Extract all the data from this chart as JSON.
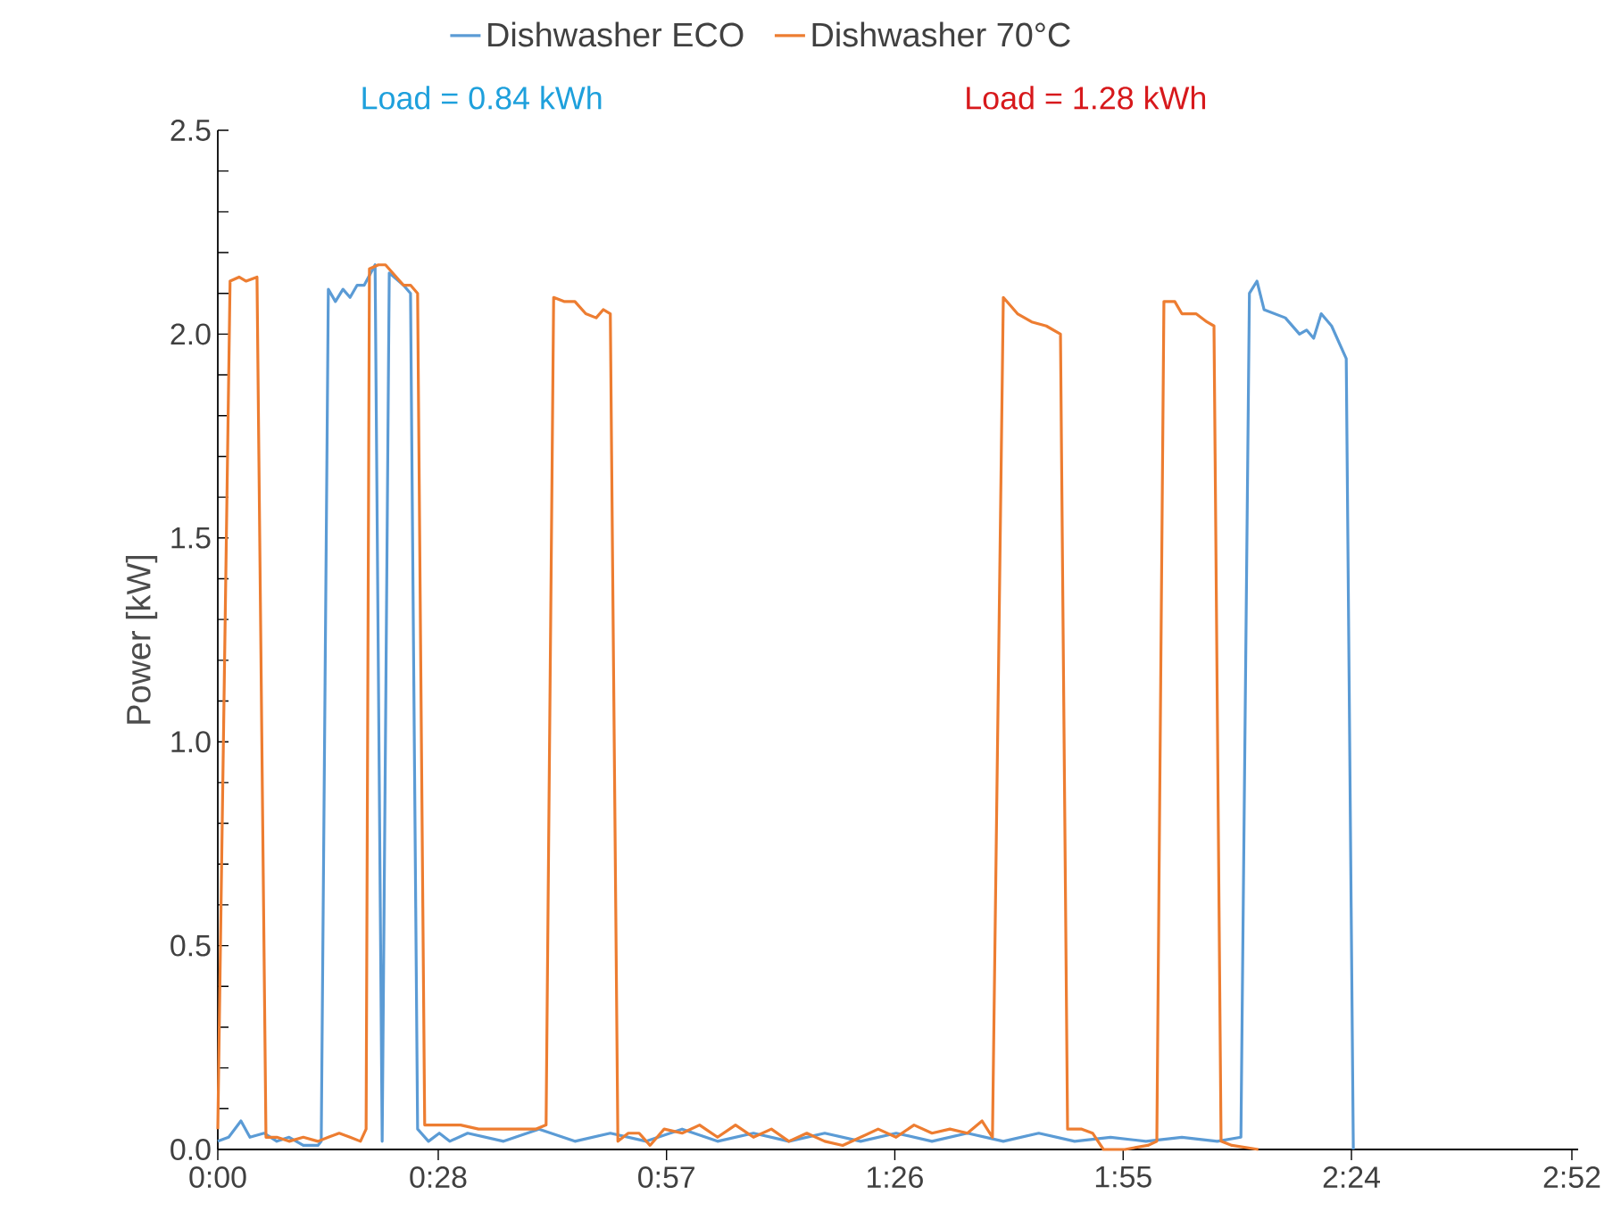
{
  "chart_data": {
    "type": "line",
    "ylabel": "Power [kW]",
    "legend": "top",
    "marker": "none",
    "line_style": "solid",
    "annotations": [
      "Load = 0.84 kWh",
      "Load = 1.28 kWh"
    ],
    "xlim": [
      0,
      2.88
    ],
    "xticks": [
      {
        "value": 0,
        "label": "0:00"
      },
      {
        "value": 0.4667,
        "label": "0:28"
      },
      {
        "value": 0.95,
        "label": "0:57"
      },
      {
        "value": 1.4333,
        "label": "1:26"
      },
      {
        "value": 1.9167,
        "label": "1:55"
      },
      {
        "value": 2.4,
        "label": "2:24"
      },
      {
        "value": 2.8667,
        "label": "2:52"
      }
    ],
    "ylim": [
      0,
      2.5
    ],
    "yticks": [
      {
        "value": 0,
        "label": "0.0"
      },
      {
        "value": 0.5,
        "label": "0.5"
      },
      {
        "value": 1,
        "label": "1.0"
      },
      {
        "value": 1.5,
        "label": "1.5"
      },
      {
        "value": 2,
        "label": "2.0"
      },
      {
        "value": 2.5,
        "label": "2.5"
      }
    ],
    "series": [
      {
        "name": "Dishwasher ECO",
        "color": "#5b9bd5",
        "x": [
          0,
          0.023,
          0.049,
          0.068,
          0.098,
          0.125,
          0.151,
          0.181,
          0.212,
          0.219,
          0.234,
          0.249,
          0.265,
          0.28,
          0.295,
          0.31,
          0.333,
          0.348,
          0.363,
          0.393,
          0.408,
          0.423,
          0.446,
          0.469,
          0.491,
          0.529,
          0.605,
          0.68,
          0.756,
          0.831,
          0.907,
          0.983,
          1.058,
          1.134,
          1.209,
          1.285,
          1.361,
          1.436,
          1.512,
          1.587,
          1.663,
          1.738,
          1.814,
          1.89,
          1.965,
          2.041,
          2.116,
          2.166,
          2.184,
          2.2,
          2.215,
          2.26,
          2.29,
          2.305,
          2.32,
          2.336,
          2.358,
          2.389,
          2.404
        ],
        "values": [
          0.02,
          0.03,
          0.07,
          0.03,
          0.04,
          0.02,
          0.03,
          0.01,
          0.01,
          0.02,
          2.11,
          2.08,
          2.11,
          2.09,
          2.12,
          2.12,
          2.17,
          0.02,
          2.15,
          2.12,
          2.1,
          0.05,
          0.02,
          0.04,
          0.02,
          0.04,
          0.02,
          0.05,
          0.02,
          0.04,
          0.02,
          0.05,
          0.02,
          0.04,
          0.02,
          0.04,
          0.02,
          0.04,
          0.02,
          0.04,
          0.02,
          0.04,
          0.02,
          0.03,
          0.02,
          0.03,
          0.02,
          0.03,
          2.1,
          2.13,
          2.06,
          2.04,
          2.0,
          2.01,
          1.99,
          2.05,
          2.02,
          1.94,
          0.0
        ]
      },
      {
        "name": "Dishwasher 70°C",
        "color": "#ed7d31",
        "x": [
          0,
          0.026,
          0.045,
          0.06,
          0.083,
          0.102,
          0.125,
          0.151,
          0.181,
          0.212,
          0.234,
          0.257,
          0.28,
          0.302,
          0.314,
          0.321,
          0.34,
          0.355,
          0.378,
          0.393,
          0.408,
          0.423,
          0.438,
          0.476,
          0.514,
          0.552,
          0.59,
          0.627,
          0.673,
          0.695,
          0.711,
          0.733,
          0.756,
          0.779,
          0.801,
          0.816,
          0.831,
          0.847,
          0.869,
          0.892,
          0.915,
          0.945,
          0.983,
          1.02,
          1.058,
          1.096,
          1.134,
          1.172,
          1.209,
          1.247,
          1.285,
          1.323,
          1.361,
          1.398,
          1.436,
          1.474,
          1.512,
          1.55,
          1.587,
          1.618,
          1.64,
          1.663,
          1.693,
          1.723,
          1.754,
          1.784,
          1.799,
          1.829,
          1.852,
          1.875,
          1.92,
          1.969,
          1.988,
          2.003,
          2.026,
          2.041,
          2.071,
          2.094,
          2.109,
          2.124,
          2.147,
          2.203
        ],
        "values": [
          0.05,
          2.13,
          2.14,
          2.13,
          2.14,
          0.03,
          0.03,
          0.02,
          0.03,
          0.02,
          0.03,
          0.04,
          0.03,
          0.02,
          0.05,
          2.16,
          2.17,
          2.17,
          2.14,
          2.12,
          2.12,
          2.1,
          0.06,
          0.06,
          0.06,
          0.05,
          0.05,
          0.05,
          0.05,
          0.06,
          2.09,
          2.08,
          2.08,
          2.05,
          2.04,
          2.06,
          2.05,
          0.02,
          0.04,
          0.04,
          0.01,
          0.05,
          0.04,
          0.06,
          0.03,
          0.06,
          0.03,
          0.05,
          0.02,
          0.04,
          0.02,
          0.01,
          0.03,
          0.05,
          0.03,
          0.06,
          0.04,
          0.05,
          0.04,
          0.07,
          0.03,
          2.09,
          2.05,
          2.03,
          2.02,
          2.0,
          0.05,
          0.05,
          0.04,
          0.0,
          0.0,
          0.01,
          0.02,
          2.08,
          2.08,
          2.05,
          2.05,
          2.03,
          2.02,
          0.02,
          0.01,
          0.0
        ]
      }
    ]
  }
}
